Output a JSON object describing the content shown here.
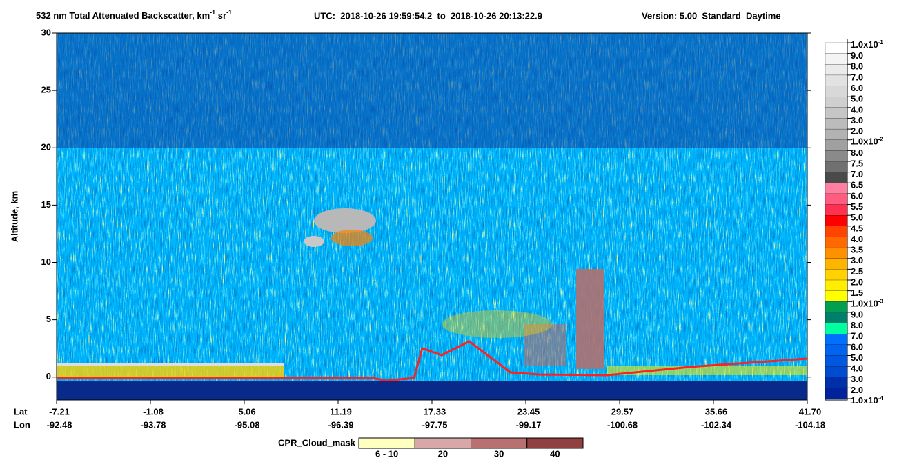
{
  "chart_data": {
    "type": "curtain",
    "title": [
      {
        "text": "532 nm Total Attenuated Backscatter, km"
      },
      {
        "sup": "-1"
      },
      {
        "text": " sr"
      },
      {
        "sup": "-1"
      }
    ],
    "utc": "UTC:  2018-10-26 19:59:54.2  to  2018-10-26 20:13:22.9",
    "version": "Version: 5.00  Standard  Daytime",
    "ylabel": "Altitude, km",
    "ylim": [
      -2,
      30
    ],
    "yticks": [
      0,
      5,
      10,
      15,
      20,
      25,
      30
    ],
    "x_rows": [
      {
        "label": "Lat",
        "values": [
          -7.21,
          -1.08,
          5.06,
          11.19,
          17.33,
          23.45,
          29.57,
          35.66,
          {
            "value": 41.7,
            "label": "41.70"
          }
        ]
      },
      {
        "label": "Lon",
        "values": [
          -92.48,
          -93.78,
          -95.08,
          -96.39,
          -97.75,
          -99.17,
          -100.68,
          -102.34,
          -104.18
        ]
      }
    ],
    "colorbar": {
      "labels": [
        {
          "text": "1.0x10",
          "sup": "-1"
        },
        "9.0",
        "8.0",
        "7.0",
        "6.0",
        "5.0",
        "4.0",
        "3.0",
        "2.0",
        {
          "text": "1.0x10",
          "sup": "-2"
        },
        "8.0",
        "7.5",
        "7.0",
        "6.5",
        "6.0",
        "5.5",
        "5.0",
        "4.5",
        "4.0",
        "3.5",
        "3.0",
        "2.5",
        "2.0",
        "1.5",
        {
          "text": "1.0x10",
          "sup": "-3"
        },
        "9.0",
        "8.0",
        "7.0",
        "6.0",
        "5.0",
        "4.0",
        "3.0",
        "2.0",
        {
          "text": "1.0x10",
          "sup": "-4"
        }
      ],
      "colors": [
        "#ffffff",
        "#f4f4f4",
        "#ebebeb",
        "#e2e2e2",
        "#d8d8d8",
        "#cfcfcf",
        "#c6c6c6",
        "#bcbcbc",
        "#b2b2b2",
        "#a0a0a0",
        "#8a8a8a",
        "#707070",
        "#4a4a4a",
        "#ff7fa0",
        "#ff5c80",
        "#ff3050",
        "#ff0000",
        "#ff4400",
        "#ff6a00",
        "#ff9000",
        "#ffb400",
        "#ffd200",
        "#ffee00",
        "#ffff00",
        "#00a050",
        "#00806a",
        "#00ffa0",
        "#0070ff",
        "#0064f0",
        "#0058e0",
        "#004cd0",
        "#0030a8",
        "#00229a"
      ]
    },
    "cpr_legend": {
      "title": "CPR_Cloud_mask",
      "colors": [
        "#ffffc0",
        "#d8a8a8",
        "#b87070",
        "#904040"
      ],
      "labels": [
        "6 - 10",
        "20",
        "30",
        "40"
      ]
    }
  }
}
